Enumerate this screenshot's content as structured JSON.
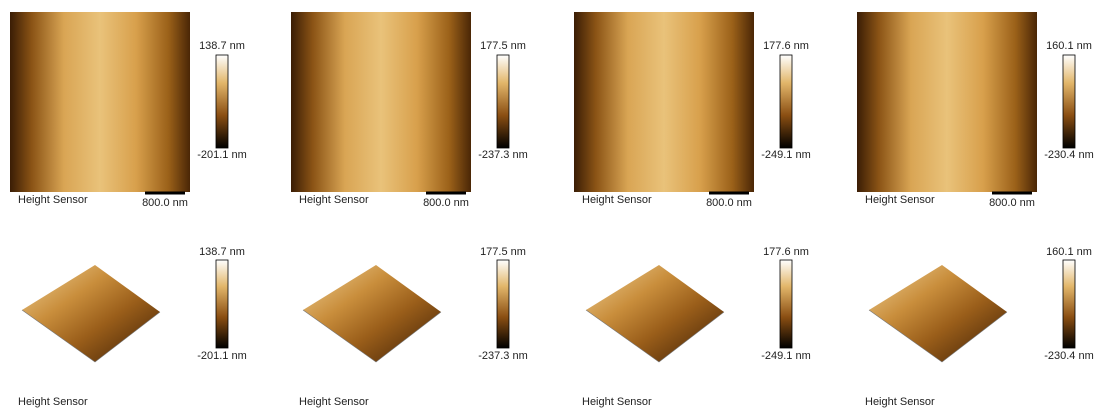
{
  "panels": [
    {
      "top": {
        "label": "Height Sensor",
        "scale_bar": "800.0 nm",
        "max": "138.7 nm",
        "min": "-201.1 nm"
      },
      "bottom": {
        "label": "Height Sensor",
        "max": "138.7 nm",
        "min": "-201.1 nm"
      }
    },
    {
      "top": {
        "label": "Height Sensor",
        "scale_bar": "800.0 nm",
        "max": "177.5 nm",
        "min": "-237.3 nm"
      },
      "bottom": {
        "label": "Height Sensor",
        "max": "177.5 nm",
        "min": "-237.3 nm"
      }
    },
    {
      "top": {
        "label": "Height Sensor",
        "scale_bar": "800.0 nm",
        "max": "177.6 nm",
        "min": "-249.1 nm"
      },
      "bottom": {
        "label": "Height Sensor",
        "max": "177.6 nm",
        "min": "-249.1 nm"
      }
    },
    {
      "top": {
        "label": "Height Sensor",
        "scale_bar": "800.0 nm",
        "max": "160.1 nm",
        "min": "-230.4 nm"
      },
      "bottom": {
        "label": "Height Sensor",
        "max": "160.1 nm",
        "min": "-230.4 nm"
      }
    }
  ]
}
